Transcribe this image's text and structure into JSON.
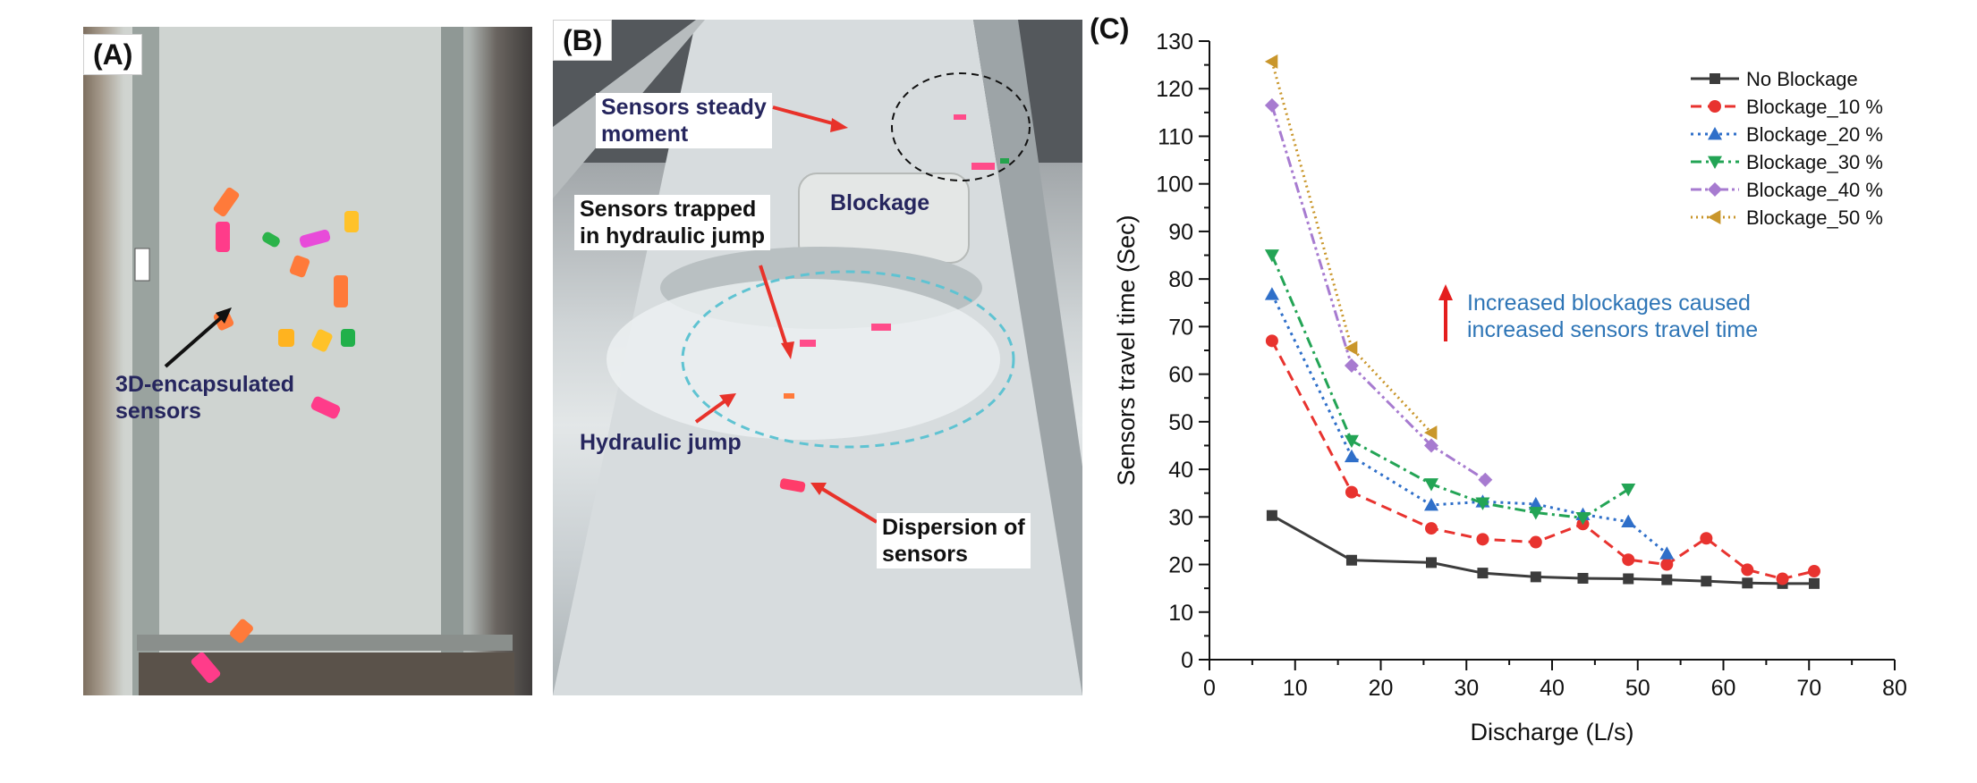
{
  "panels": {
    "a": {
      "label": "(A)",
      "annotation": "3D-encapsulated\nsensors"
    },
    "b": {
      "label": "(B)",
      "steady": "Sensors steady\nmoment",
      "blockage": "Blockage",
      "trapped": "Sensors trapped\nin hydraulic jump",
      "jump": "Hydraulic jump",
      "dispersion": "Dispersion of\nsensors"
    },
    "c": {
      "label": "(C)",
      "annotation_line1": "Increased blockages caused",
      "annotation_line2": "increased sensors travel time"
    }
  },
  "colors": {
    "annotation_text": "#2e75b6",
    "annotation_arrow": "#e41e1e",
    "photo_label_navy": "#26265e",
    "photo_arrow": "#e8322a"
  },
  "chart_data": {
    "type": "line",
    "title": "",
    "xlabel": "Discharge (L/s)",
    "ylabel": "Sensors travel time (Sec)",
    "xlim": [
      0,
      80
    ],
    "ylim": [
      0,
      130
    ],
    "xticks": [
      0,
      10,
      20,
      30,
      40,
      50,
      60,
      70,
      80
    ],
    "yticks": [
      0,
      10,
      20,
      30,
      40,
      50,
      60,
      70,
      80,
      90,
      100,
      110,
      120,
      130
    ],
    "grid": false,
    "legend_position": "top-right",
    "series": [
      {
        "name": "No Blockage",
        "color": "#3c3c3c",
        "marker": "square",
        "dash": "solid",
        "x": [
          7.3,
          16.6,
          25.9,
          31.9,
          38.1,
          43.6,
          48.9,
          53.4,
          58.0,
          62.8,
          66.9,
          70.6
        ],
        "y": [
          30.3,
          20.9,
          20.4,
          18.2,
          17.4,
          17.1,
          17.0,
          16.8,
          16.5,
          16.1,
          16.0,
          16.0
        ]
      },
      {
        "name": "Blockage_10 %",
        "color": "#e8332f",
        "marker": "circle",
        "dash": "dashed",
        "x": [
          7.3,
          16.6,
          25.9,
          31.9,
          38.1,
          43.6,
          48.9,
          53.4,
          58.0,
          62.8,
          66.9,
          70.6
        ],
        "y": [
          67.0,
          35.2,
          27.6,
          25.3,
          24.7,
          28.5,
          21.0,
          20.0,
          25.5,
          18.9,
          17.0,
          18.6
        ]
      },
      {
        "name": "Blockage_20 %",
        "color": "#2f6fc9",
        "marker": "triangle-up",
        "dash": "dotted",
        "x": [
          7.3,
          16.6,
          25.9,
          31.9,
          38.1,
          43.6,
          48.9,
          53.4
        ],
        "y": [
          76.8,
          42.7,
          32.5,
          33.2,
          32.7,
          30.5,
          29.0,
          22.3
        ]
      },
      {
        "name": "Blockage_30 %",
        "color": "#23a455",
        "marker": "triangle-down",
        "dash": "dash-dot",
        "x": [
          7.3,
          16.6,
          25.9,
          31.9,
          38.1,
          43.6,
          48.9
        ],
        "y": [
          85.0,
          46.0,
          36.9,
          32.9,
          30.9,
          29.8,
          35.8
        ]
      },
      {
        "name": "Blockage_40 %",
        "color": "#a77bd0",
        "marker": "diamond",
        "dash": "dash-dot-dot",
        "x": [
          7.3,
          16.6,
          25.9,
          32.2
        ],
        "y": [
          116.5,
          61.8,
          45.0,
          37.8
        ]
      },
      {
        "name": "Blockage_50 %",
        "color": "#c9962b",
        "marker": "triangle-left",
        "dash": "short-dotted",
        "x": [
          7.3,
          16.6,
          25.9
        ],
        "y": [
          125.7,
          65.5,
          47.7
        ]
      }
    ]
  }
}
